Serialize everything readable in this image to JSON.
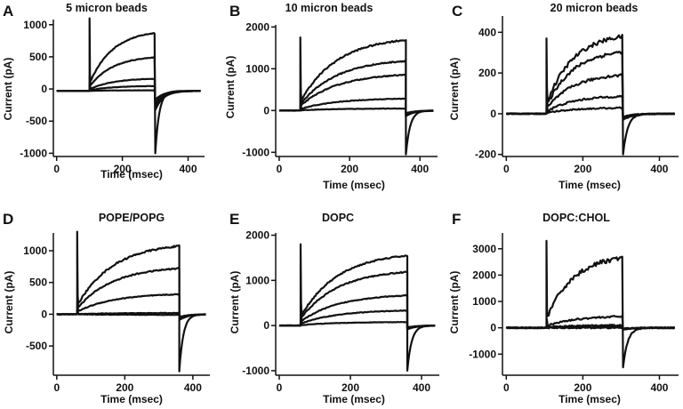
{
  "chart_data": [
    {
      "panel": "A",
      "type": "line",
      "title": "5 micron beads",
      "xlabel": "Time (msec)",
      "ylabel": "Current (pA)",
      "xlim": [
        -10,
        450
      ],
      "ylim": [
        -1050,
        1080
      ],
      "xticks": [
        0,
        200,
        400
      ],
      "yticks": [
        -1000,
        -500,
        0,
        500,
        1000
      ],
      "pulse_start": 100,
      "pulse_end": 300,
      "spike_on": 1100,
      "spike_off": -1000,
      "baseline": -30,
      "plateaus": [
        950,
        550,
        200,
        80,
        10
      ],
      "tail_scale": 0.35,
      "noise": 10
    },
    {
      "panel": "B",
      "type": "line",
      "title": "10 micron beads",
      "xlabel": "Time (msec)",
      "ylabel": "Current (pA)",
      "xlim": [
        -10,
        450
      ],
      "ylim": [
        -1100,
        2050
      ],
      "xticks": [
        0,
        200,
        400
      ],
      "yticks": [
        -1000,
        0,
        1000,
        2000
      ],
      "pulse_start": 60,
      "pulse_end": 360,
      "spike_on": 1750,
      "spike_off": -1050,
      "baseline": 0,
      "plateaus": [
        1780,
        1250,
        900,
        300,
        50
      ],
      "tail_scale": 0.15,
      "noise": 25
    },
    {
      "panel": "C",
      "type": "line",
      "title": "20 micron beads",
      "xlabel": "Time (msec)",
      "ylabel": "Current (pA)",
      "xlim": [
        -10,
        450
      ],
      "ylim": [
        -210,
        480
      ],
      "xticks": [
        0,
        200,
        400
      ],
      "yticks": [
        -200,
        0,
        200,
        400
      ],
      "pulse_start": 105,
      "pulse_end": 305,
      "spike_on": 370,
      "spike_off": -200,
      "baseline": 0,
      "plateaus": [
        400,
        320,
        200,
        90,
        30
      ],
      "tail_scale": 0.18,
      "noise": 14
    },
    {
      "panel": "D",
      "type": "line",
      "title": "POPE/POPG",
      "xlabel": "Time (msec)",
      "ylabel": "Current (pA)",
      "xlim": [
        -10,
        450
      ],
      "ylim": [
        -960,
        1280
      ],
      "xticks": [
        0,
        200,
        400
      ],
      "yticks": [
        -500,
        0,
        500,
        1000
      ],
      "pulse_start": 60,
      "pulse_end": 360,
      "spike_on": 1300,
      "spike_off": -900,
      "baseline": 0,
      "plateaus": [
        1130,
        760,
        330,
        20,
        -10
      ],
      "tail_scale": 0.12,
      "noise": 18
    },
    {
      "panel": "E",
      "type": "line",
      "title": "DOPC",
      "xlabel": "Time (msec)",
      "ylabel": "Current (pA)",
      "xlim": [
        -10,
        450
      ],
      "ylim": [
        -1100,
        2050
      ],
      "xticks": [
        0,
        200,
        400
      ],
      "yticks": [
        -1000,
        0,
        1000,
        2000
      ],
      "pulse_start": 60,
      "pulse_end": 360,
      "spike_on": 1800,
      "spike_off": -1000,
      "baseline": 0,
      "plateaus": [
        1630,
        1250,
        700,
        350,
        80
      ],
      "tail_scale": 0.1,
      "noise": 20
    },
    {
      "panel": "F",
      "type": "line",
      "title": "DOPC:CHOL",
      "xlabel": "Time (msec)",
      "ylabel": "Current (pA)",
      "xlim": [
        -10,
        450
      ],
      "ylim": [
        -1800,
        3600
      ],
      "xticks": [
        0,
        200,
        400
      ],
      "yticks": [
        -1000,
        0,
        1000,
        2000,
        3000
      ],
      "pulse_start": 105,
      "pulse_end": 305,
      "spike_on": 3300,
      "spike_off": -1500,
      "baseline": 0,
      "plateaus": [
        2800,
        450,
        100,
        40,
        0
      ],
      "tail_scale": 0.05,
      "noise": 120
    }
  ]
}
